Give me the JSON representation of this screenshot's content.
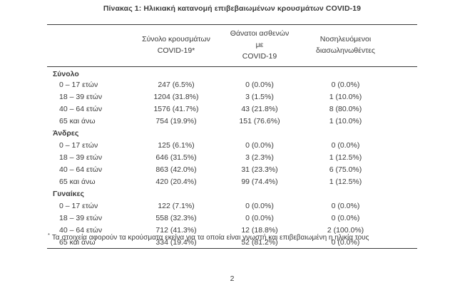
{
  "page": {
    "title": "Πίνακας 1: Ηλικιακή κατανομή επιβεβαιωμένων κρουσμάτων COVID-19",
    "footnote_marker": "*",
    "footnote_text": "Τα στοιχεία αφορούν τα κρούσματα εκείνα για τα οποία είναι γνωστή και επιβεβαιωμένη η ηλικία τους",
    "page_number": "2"
  },
  "colors": {
    "text": "#3a3a3a",
    "rule": "#3a3a3a",
    "background": "#ffffff"
  },
  "table": {
    "columns": [
      {
        "line1": "Σύνολο κρουσμάτων",
        "line2": "COVID-19*"
      },
      {
        "line1": "Θάνατοι ασθενών με",
        "line2": "COVID-19"
      },
      {
        "line1": "Νοσηλευόμενοι",
        "line2": "διασωληνωθέντες"
      }
    ],
    "sections": [
      {
        "label": "Σύνολο",
        "rows": [
          {
            "label": "0 – 17 ετών",
            "cases": "247 (6.5%)",
            "deaths": "0 (0.0%)",
            "intubated": "0 (0.0%)"
          },
          {
            "label": "18 – 39 ετών",
            "cases": "1204 (31.8%)",
            "deaths": "3 (1.5%)",
            "intubated": "1 (10.0%)"
          },
          {
            "label": "40 – 64 ετών",
            "cases": "1576 (41.7%)",
            "deaths": "43 (21.8%)",
            "intubated": "8 (80.0%)"
          },
          {
            "label": "65 και άνω",
            "cases": "754 (19.9%)",
            "deaths": "151 (76.6%)",
            "intubated": "1 (10.0%)"
          }
        ]
      },
      {
        "label": "Άνδρες",
        "rows": [
          {
            "label": "0 – 17 ετών",
            "cases": "125 (6.1%)",
            "deaths": "0 (0.0%)",
            "intubated": "0 (0.0%)"
          },
          {
            "label": "18 – 39 ετών",
            "cases": "646 (31.5%)",
            "deaths": "3 (2.3%)",
            "intubated": "1 (12.5%)"
          },
          {
            "label": "40 – 64 ετών",
            "cases": "863 (42.0%)",
            "deaths": "31 (23.3%)",
            "intubated": "6 (75.0%)"
          },
          {
            "label": "65 και άνω",
            "cases": "420 (20.4%)",
            "deaths": "99 (74.4%)",
            "intubated": "1 (12.5%)"
          }
        ]
      },
      {
        "label": "Γυναίκες",
        "rows": [
          {
            "label": "0 – 17 ετών",
            "cases": "122 (7.1%)",
            "deaths": "0 (0.0%)",
            "intubated": "0 (0.0%)"
          },
          {
            "label": "18 – 39 ετών",
            "cases": "558 (32.3%)",
            "deaths": "0 (0.0%)",
            "intubated": "0 (0.0%)"
          },
          {
            "label": "40 – 64 ετών",
            "cases": "712 (41.3%)",
            "deaths": "12 (18.8%)",
            "intubated": "2 (100.0%)"
          },
          {
            "label": "65 και άνω",
            "cases": "334 (19.4%)",
            "deaths": "52 (81.2%)",
            "intubated": "0 (0.0%)"
          }
        ]
      }
    ]
  }
}
